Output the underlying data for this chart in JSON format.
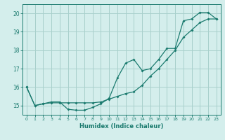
{
  "xlabel": "Humidex (Indice chaleur)",
  "bg_color": "#d4eeec",
  "grid_color": "#a8d0cc",
  "line_color": "#1a7a6e",
  "xlim": [
    -0.5,
    23.5
  ],
  "ylim": [
    14.5,
    20.5
  ],
  "yticks": [
    15,
    16,
    17,
    18,
    19,
    20
  ],
  "xticks": [
    0,
    1,
    2,
    3,
    4,
    5,
    6,
    7,
    8,
    9,
    10,
    11,
    12,
    13,
    14,
    15,
    16,
    17,
    18,
    19,
    20,
    21,
    22,
    23
  ],
  "line1_x": [
    0,
    1,
    2,
    3,
    4,
    5,
    6,
    7,
    8,
    9,
    10,
    11,
    12,
    13,
    14,
    15,
    16,
    17,
    18,
    19,
    20,
    21,
    22,
    23
  ],
  "line1_y": [
    16.0,
    15.0,
    15.1,
    15.2,
    15.2,
    14.8,
    14.75,
    14.75,
    14.9,
    15.1,
    15.4,
    16.5,
    17.3,
    17.5,
    16.9,
    17.0,
    17.5,
    18.1,
    18.1,
    19.6,
    19.7,
    20.05,
    20.05,
    19.7
  ],
  "line2_x": [
    0,
    1,
    2,
    3,
    4,
    5,
    6,
    7,
    8,
    9,
    10,
    11,
    12,
    13,
    14,
    15,
    16,
    17,
    18,
    19,
    20,
    21,
    22,
    23
  ],
  "line2_y": [
    16.0,
    15.0,
    15.1,
    15.15,
    15.15,
    15.15,
    15.15,
    15.15,
    15.15,
    15.2,
    15.35,
    15.5,
    15.65,
    15.75,
    16.1,
    16.6,
    17.0,
    17.5,
    18.0,
    18.7,
    19.1,
    19.5,
    19.7,
    19.7
  ]
}
